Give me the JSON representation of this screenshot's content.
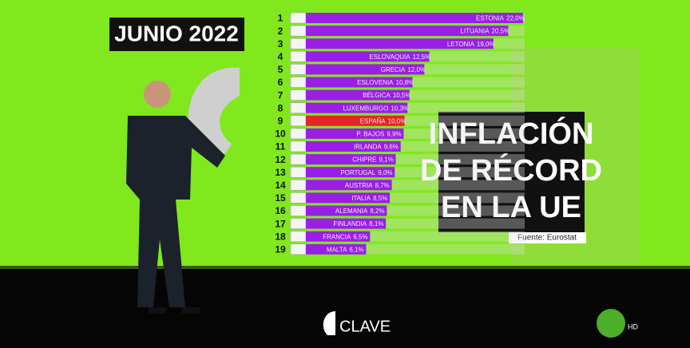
{
  "chart_data": {
    "type": "bar",
    "orientation": "horizontal",
    "title": "JUNIO 2022",
    "headline": [
      "INFLACIÓN",
      "DE RÉCORD",
      "EN LA UE"
    ],
    "source": "Fuente: Eurostat",
    "logo_text": "CLAVE",
    "badge": "HD",
    "ranks": [
      1,
      2,
      3,
      4,
      5,
      6,
      7,
      8,
      9,
      10,
      11,
      12,
      13,
      14,
      15,
      16,
      17,
      18,
      19
    ],
    "categories": [
      "ESTONIA",
      "LITUANIA",
      "LETONIA",
      "ESLOVAQUIA",
      "GRECIA",
      "ESLOVENIA",
      "BÉLGICA",
      "LUXEMBURGO",
      "ESPAÑA",
      "P. BAJOS",
      "IRLANDA",
      "CHIPRE",
      "PORTUGAL",
      "AUSTRIA",
      "ITALIA",
      "ALEMANIA",
      "FINLANDIA",
      "FRANCIA",
      "MALTA"
    ],
    "values": [
      22.0,
      20.5,
      19.0,
      12.5,
      12.0,
      10.8,
      10.5,
      10.3,
      10.0,
      9.9,
      9.6,
      9.1,
      9.0,
      8.7,
      8.5,
      8.2,
      8.1,
      6.5,
      6.1
    ],
    "value_labels": [
      "22,0%",
      "20,5%",
      "19,0%",
      "12,5%",
      "12,0%",
      "10,8%",
      "10,5%",
      "10,3%",
      "10,0%",
      "9,9%",
      "9,6%",
      "9,1%",
      "9,0%",
      "8,7%",
      "8,5%",
      "8,2%",
      "8,1%",
      "6,5%",
      "6,1%"
    ],
    "colors": [
      "#9a1ee6",
      "#9a1ee6",
      "#9a1ee6",
      "#9a1ee6",
      "#9a1ee6",
      "#9a1ee6",
      "#9a1ee6",
      "#9a1ee6",
      "#e5232a",
      "#9a1ee6",
      "#9a1ee6",
      "#9a1ee6",
      "#9a1ee6",
      "#9a1ee6",
      "#9a1ee6",
      "#9a1ee6",
      "#9a1ee6",
      "#9a1ee6",
      "#9a1ee6"
    ]
  }
}
